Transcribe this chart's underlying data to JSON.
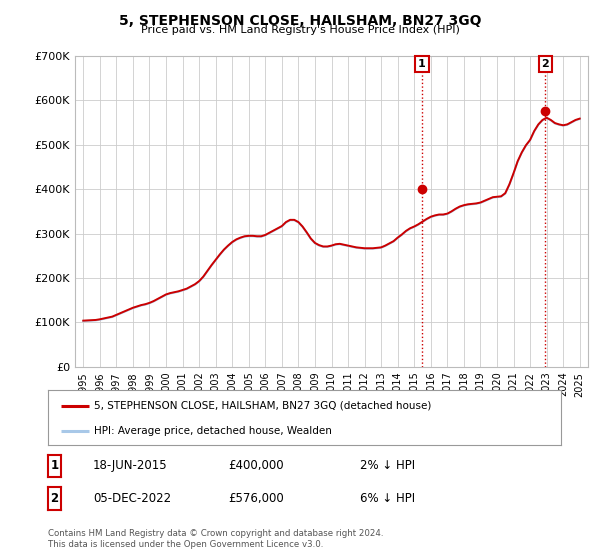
{
  "title": "5, STEPHENSON CLOSE, HAILSHAM, BN27 3GQ",
  "subtitle": "Price paid vs. HM Land Registry's House Price Index (HPI)",
  "ylim": [
    0,
    700000
  ],
  "yticks": [
    0,
    100000,
    200000,
    300000,
    400000,
    500000,
    600000,
    700000
  ],
  "ytick_labels": [
    "£0",
    "£100K",
    "£200K",
    "£300K",
    "£400K",
    "£500K",
    "£600K",
    "£700K"
  ],
  "xlim_start": 1994.5,
  "xlim_end": 2025.5,
  "xticks": [
    1995,
    1996,
    1997,
    1998,
    1999,
    2000,
    2001,
    2002,
    2003,
    2004,
    2005,
    2006,
    2007,
    2008,
    2009,
    2010,
    2011,
    2012,
    2013,
    2014,
    2015,
    2016,
    2017,
    2018,
    2019,
    2020,
    2021,
    2022,
    2023,
    2024,
    2025
  ],
  "hpi_color": "#a8c8e8",
  "price_color": "#cc0000",
  "vline_color": "#cc0000",
  "sale1_x": 2015.46,
  "sale1_y": 400000,
  "sale1_date": "18-JUN-2015",
  "sale1_price": "£400,000",
  "sale1_hpi": "2% ↓ HPI",
  "sale2_x": 2022.92,
  "sale2_y": 576000,
  "sale2_date": "05-DEC-2022",
  "sale2_price": "£576,000",
  "sale2_hpi": "6% ↓ HPI",
  "legend_property": "5, STEPHENSON CLOSE, HAILSHAM, BN27 3GQ (detached house)",
  "legend_hpi": "HPI: Average price, detached house, Wealden",
  "footnote1": "Contains HM Land Registry data © Crown copyright and database right 2024.",
  "footnote2": "This data is licensed under the Open Government Licence v3.0.",
  "background_color": "#ffffff",
  "plot_bg_color": "#ffffff",
  "grid_color": "#cccccc",
  "hpi_data_x": [
    1995.0,
    1995.25,
    1995.5,
    1995.75,
    1996.0,
    1996.25,
    1996.5,
    1996.75,
    1997.0,
    1997.25,
    1997.5,
    1997.75,
    1998.0,
    1998.25,
    1998.5,
    1998.75,
    1999.0,
    1999.25,
    1999.5,
    1999.75,
    2000.0,
    2000.25,
    2000.5,
    2000.75,
    2001.0,
    2001.25,
    2001.5,
    2001.75,
    2002.0,
    2002.25,
    2002.5,
    2002.75,
    2003.0,
    2003.25,
    2003.5,
    2003.75,
    2004.0,
    2004.25,
    2004.5,
    2004.75,
    2005.0,
    2005.25,
    2005.5,
    2005.75,
    2006.0,
    2006.25,
    2006.5,
    2006.75,
    2007.0,
    2007.25,
    2007.5,
    2007.75,
    2008.0,
    2008.25,
    2008.5,
    2008.75,
    2009.0,
    2009.25,
    2009.5,
    2009.75,
    2010.0,
    2010.25,
    2010.5,
    2010.75,
    2011.0,
    2011.25,
    2011.5,
    2011.75,
    2012.0,
    2012.25,
    2012.5,
    2012.75,
    2013.0,
    2013.25,
    2013.5,
    2013.75,
    2014.0,
    2014.25,
    2014.5,
    2014.75,
    2015.0,
    2015.25,
    2015.5,
    2015.75,
    2016.0,
    2016.25,
    2016.5,
    2016.75,
    2017.0,
    2017.25,
    2017.5,
    2017.75,
    2018.0,
    2018.25,
    2018.5,
    2018.75,
    2019.0,
    2019.25,
    2019.5,
    2019.75,
    2020.0,
    2020.25,
    2020.5,
    2020.75,
    2021.0,
    2021.25,
    2021.5,
    2021.75,
    2022.0,
    2022.25,
    2022.5,
    2022.75,
    2023.0,
    2023.25,
    2023.5,
    2023.75,
    2024.0,
    2024.25,
    2024.5,
    2024.75,
    2025.0
  ],
  "hpi_data_y": [
    103000,
    103500,
    104000,
    104500,
    106000,
    108000,
    110000,
    112000,
    116000,
    120000,
    124000,
    128000,
    132000,
    135000,
    138000,
    140000,
    143000,
    147000,
    152000,
    157000,
    162000,
    165000,
    167000,
    169000,
    172000,
    175000,
    180000,
    185000,
    192000,
    202000,
    215000,
    228000,
    240000,
    252000,
    263000,
    272000,
    280000,
    286000,
    290000,
    293000,
    294000,
    294000,
    293000,
    293000,
    296000,
    301000,
    306000,
    311000,
    316000,
    325000,
    330000,
    330000,
    325000,
    315000,
    302000,
    288000,
    278000,
    273000,
    270000,
    270000,
    272000,
    275000,
    276000,
    274000,
    272000,
    270000,
    268000,
    267000,
    266000,
    266000,
    266000,
    267000,
    268000,
    272000,
    277000,
    282000,
    290000,
    297000,
    305000,
    311000,
    315000,
    320000,
    326000,
    332000,
    337000,
    340000,
    342000,
    342000,
    344000,
    349000,
    355000,
    360000,
    363000,
    365000,
    366000,
    367000,
    369000,
    373000,
    377000,
    381000,
    382000,
    383000,
    390000,
    410000,
    435000,
    462000,
    482000,
    498000,
    510000,
    530000,
    545000,
    555000,
    560000,
    555000,
    548000,
    545000,
    543000,
    545000,
    550000,
    555000,
    558000
  ],
  "price_data_x": [
    1995.0,
    1995.25,
    1995.5,
    1995.75,
    1996.0,
    1996.25,
    1996.5,
    1996.75,
    1997.0,
    1997.25,
    1997.5,
    1997.75,
    1998.0,
    1998.25,
    1998.5,
    1998.75,
    1999.0,
    1999.25,
    1999.5,
    1999.75,
    2000.0,
    2000.25,
    2000.5,
    2000.75,
    2001.0,
    2001.25,
    2001.5,
    2001.75,
    2002.0,
    2002.25,
    2002.5,
    2002.75,
    2003.0,
    2003.25,
    2003.5,
    2003.75,
    2004.0,
    2004.25,
    2004.5,
    2004.75,
    2005.0,
    2005.25,
    2005.5,
    2005.75,
    2006.0,
    2006.25,
    2006.5,
    2006.75,
    2007.0,
    2007.25,
    2007.5,
    2007.75,
    2008.0,
    2008.25,
    2008.5,
    2008.75,
    2009.0,
    2009.25,
    2009.5,
    2009.75,
    2010.0,
    2010.25,
    2010.5,
    2010.75,
    2011.0,
    2011.25,
    2011.5,
    2011.75,
    2012.0,
    2012.25,
    2012.5,
    2012.75,
    2013.0,
    2013.25,
    2013.5,
    2013.75,
    2014.0,
    2014.25,
    2014.5,
    2014.75,
    2015.0,
    2015.25,
    2015.5,
    2015.75,
    2016.0,
    2016.25,
    2016.5,
    2016.75,
    2017.0,
    2017.25,
    2017.5,
    2017.75,
    2018.0,
    2018.25,
    2018.5,
    2018.75,
    2019.0,
    2019.25,
    2019.5,
    2019.75,
    2020.0,
    2020.25,
    2020.5,
    2020.75,
    2021.0,
    2021.25,
    2021.5,
    2021.75,
    2022.0,
    2022.25,
    2022.5,
    2022.75,
    2023.0,
    2023.25,
    2023.5,
    2023.75,
    2024.0,
    2024.25,
    2024.5,
    2024.75,
    2025.0
  ],
  "price_data_y": [
    104000,
    104500,
    105000,
    105500,
    107000,
    109000,
    111000,
    113000,
    117000,
    121000,
    125000,
    129000,
    133000,
    136000,
    139000,
    141000,
    144000,
    148000,
    153000,
    158000,
    163000,
    166000,
    168000,
    170000,
    173000,
    176000,
    181000,
    186000,
    193000,
    203000,
    216000,
    229000,
    241000,
    253000,
    264000,
    273000,
    281000,
    287000,
    291000,
    294000,
    295000,
    295000,
    294000,
    294000,
    297000,
    302000,
    307000,
    312000,
    317000,
    326000,
    331000,
    331000,
    326000,
    316000,
    303000,
    289000,
    279000,
    274000,
    271000,
    271000,
    273000,
    276000,
    277000,
    275000,
    273000,
    271000,
    269000,
    268000,
    267000,
    267000,
    267000,
    268000,
    269000,
    273000,
    278000,
    283000,
    291000,
    298000,
    306000,
    312000,
    316000,
    321000,
    327000,
    333000,
    338000,
    341000,
    343000,
    343000,
    345000,
    350000,
    356000,
    361000,
    364000,
    366000,
    367000,
    368000,
    370000,
    374000,
    378000,
    382000,
    383000,
    384000,
    391000,
    411000,
    436000,
    463000,
    483000,
    499000,
    511000,
    531000,
    546000,
    556000,
    561000,
    556000,
    549000,
    546000,
    544000,
    546000,
    551000,
    556000,
    559000
  ]
}
